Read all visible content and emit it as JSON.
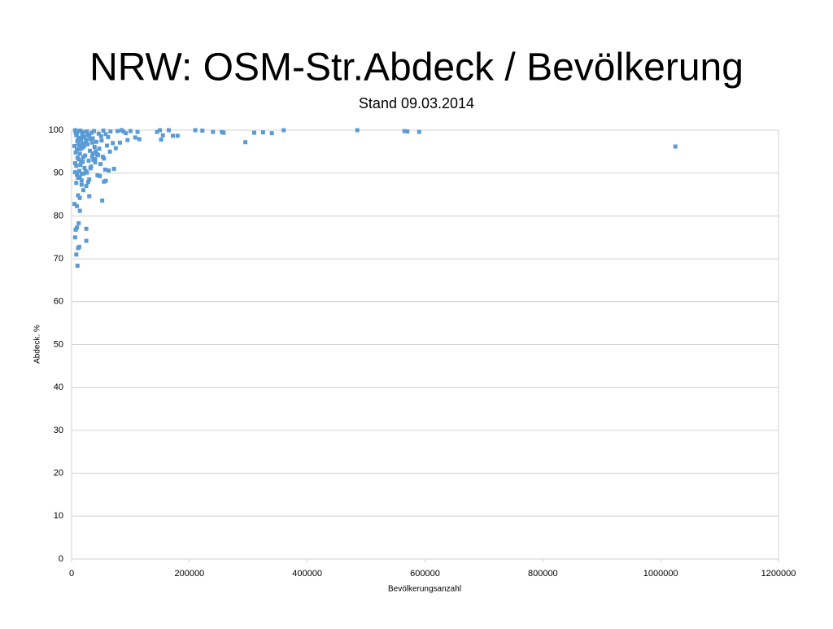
{
  "chart_data": {
    "type": "scatter",
    "title": "NRW: OSM-Str.Abdeck / Bevölkerung",
    "subtitle": "Stand 09.03.2014",
    "x_label": "Bevölkerungsanzahl",
    "y_label": "Abdeck. %",
    "series": [
      {
        "name": "Abdeck. %",
        "color": "#5b9bd5",
        "x": [
          1025000,
          590000,
          570000,
          565000,
          485000,
          360000,
          340000,
          325000,
          310000,
          295000,
          258000,
          255000,
          240000,
          222000,
          210000,
          180000,
          172000,
          165000,
          155000,
          152000,
          150000,
          145000,
          115000,
          112000,
          108000,
          100000,
          95000,
          92000,
          88000,
          85000,
          82000,
          78000,
          75000,
          72000,
          70000,
          65000,
          63000,
          58000,
          55000,
          52000,
          48000,
          44000,
          40000,
          10000,
          8000,
          11000,
          13000,
          25000,
          6000,
          7000,
          9000,
          25000,
          12000,
          14000,
          5000,
          9000,
          11000,
          14000,
          30000,
          20000,
          8000,
          17000,
          25000,
          30000,
          6000,
          7000,
          8000,
          9000,
          10000,
          11000,
          12000,
          13000,
          15000,
          16000,
          18000,
          19000,
          21000,
          22000,
          24000,
          26000,
          28000,
          32000,
          34000,
          36000,
          38000,
          42000,
          46000,
          50000,
          54000,
          58000,
          62000,
          66000,
          5000,
          7000,
          9000,
          12000,
          14000,
          16000,
          18000,
          20000,
          23000,
          27000,
          31000,
          35000,
          39000,
          43000,
          47000,
          51000,
          55000,
          60000,
          6000,
          8000,
          10000,
          13000,
          15000,
          17000,
          19000,
          22000,
          26000,
          29000,
          33000,
          37000,
          41000,
          45000,
          49000,
          53000,
          57000,
          6000,
          9000,
          11000,
          14000,
          17000,
          20000,
          24000,
          28000,
          32000,
          36000,
          40000,
          10000,
          12000,
          15000,
          18000,
          21000,
          25000,
          30000,
          35000
        ],
        "values": [
          96.2,
          99.6,
          99.7,
          99.8,
          100,
          100,
          99.3,
          99.5,
          99.4,
          97.2,
          99.4,
          99.6,
          99.6,
          99.9,
          100,
          98.7,
          98.7,
          100,
          98.8,
          97.8,
          100,
          99.6,
          97.9,
          99.6,
          98.3,
          99.8,
          97.7,
          99.3,
          99.7,
          100,
          97.1,
          99.8,
          95.8,
          91,
          97,
          95,
          90.6,
          88.2,
          88,
          83.6,
          89.3,
          89.5,
          92.5,
          68.4,
          71,
          72.5,
          72.8,
          74.2,
          75,
          76.8,
          77.3,
          77,
          78.3,
          81.2,
          82.8,
          82.3,
          84.8,
          84.2,
          84.6,
          86,
          87.7,
          87.3,
          87,
          88.5,
          100,
          99.5,
          98.8,
          99.2,
          97.5,
          99.8,
          98.2,
          96.5,
          99.9,
          97.8,
          99.1,
          96.9,
          99.6,
          98.5,
          97.2,
          99.7,
          98.9,
          97.9,
          99.4,
          98.1,
          99.8,
          97.3,
          99.2,
          98.6,
          99.9,
          99.1,
          98.4,
          99.7,
          96.3,
          94.8,
          95.5,
          93.2,
          94.5,
          92.8,
          95.9,
          93.7,
          94.1,
          96.7,
          95.2,
          93.9,
          96.1,
          94.4,
          95.7,
          97.6,
          93.4,
          96.4,
          92.3,
          91.7,
          93.6,
          90.5,
          91.9,
          89.8,
          92.6,
          91.2,
          90.1,
          92.9,
          91.5,
          93.1,
          95.1,
          94.2,
          92.1,
          93.8,
          90.8,
          90.2,
          89.6,
          88.9,
          89.1,
          88.3,
          89.9,
          90.4,
          87.9,
          91.1,
          94.6,
          93.3,
          97.4,
          96.8,
          95.6,
          98.3,
          96.2,
          97.7,
          98.7,
          97.1
        ]
      }
    ],
    "xlim": [
      0,
      1200000
    ],
    "xticks": [
      0,
      200000,
      400000,
      600000,
      800000,
      1000000,
      1200000
    ],
    "ylim": [
      0,
      100
    ],
    "yticks": [
      0,
      10,
      20,
      30,
      40,
      50,
      60,
      70,
      80,
      90,
      100
    ],
    "grid": true
  }
}
